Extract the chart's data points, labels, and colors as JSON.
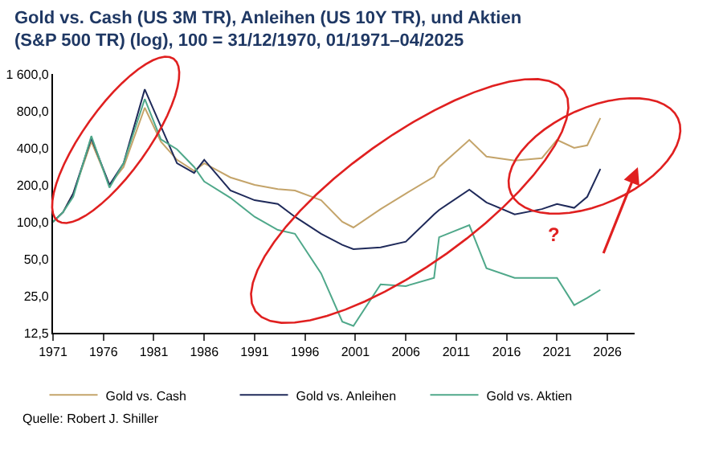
{
  "chart_data": {
    "type": "line",
    "title": "Gold vs. Cash (US 3M TR), Anleihen (US 10Y TR), und Aktien (S&P 500 TR) (log), 100 = 31/12/1970, 01/1971–04/2025",
    "x": [
      1971,
      1972,
      1973,
      1974.8,
      1976.6,
      1978,
      1980.1,
      1981.7,
      1983.3,
      1985,
      1986,
      1988.6,
      1991,
      1993.3,
      1995,
      1997.6,
      1999.7,
      2000.8,
      2003.5,
      2006,
      2008.8,
      2009.3,
      2012.3,
      2014,
      2016.8,
      2019.5,
      2021,
      2022.7,
      2024,
      2025.3
    ],
    "series": [
      {
        "name": "Gold vs. Cash",
        "color": "#c4a46a",
        "values": [
          100,
          120,
          170,
          450,
          200,
          280,
          850,
          450,
          320,
          260,
          300,
          230,
          200,
          185,
          180,
          150,
          100,
          90,
          127,
          170,
          233,
          280,
          465,
          340,
          315,
          330,
          465,
          400,
          420,
          700
        ]
      },
      {
        "name": "Gold vs. Anleihen",
        "color": "#1f2a5a",
        "values": [
          100,
          120,
          170,
          480,
          200,
          300,
          1200,
          600,
          300,
          250,
          320,
          180,
          150,
          140,
          110,
          80,
          65,
          60,
          62,
          69,
          115,
          125,
          183,
          144,
          115,
          127,
          140,
          130,
          160,
          270
        ]
      },
      {
        "name": "Gold vs. Aktien",
        "color": "#4fa88a",
        "values": [
          100,
          120,
          160,
          500,
          190,
          300,
          1000,
          470,
          390,
          280,
          213,
          157,
          110,
          86,
          80,
          38,
          15.4,
          14.2,
          31,
          30,
          35,
          75,
          94,
          42,
          35,
          35,
          35,
          21,
          24,
          28
        ]
      }
    ],
    "log": "y",
    "xlim": [
      1971,
      2028.7
    ],
    "xticks": [
      1971,
      1976,
      1981,
      1986,
      1991,
      1996,
      2001,
      2006,
      2011,
      2016,
      2021,
      2026
    ],
    "ylim": [
      12.5,
      1600
    ],
    "yticks": [
      {
        "value": 12.5,
        "label": "12,5"
      },
      {
        "value": 25,
        "label": "25,0"
      },
      {
        "value": 50,
        "label": "50,0"
      },
      {
        "value": 100,
        "label": "100,0"
      },
      {
        "value": 200,
        "label": "200,0"
      },
      {
        "value": 400,
        "label": "400,0"
      },
      {
        "value": 800,
        "label": "800,0"
      },
      {
        "value": 1600,
        "label": "1 600,0"
      }
    ],
    "legend": "bottom",
    "marker": "none",
    "line_style": "solid",
    "annotations": [
      "?",
      "Quelle: Robert J. Shiller"
    ]
  }
}
